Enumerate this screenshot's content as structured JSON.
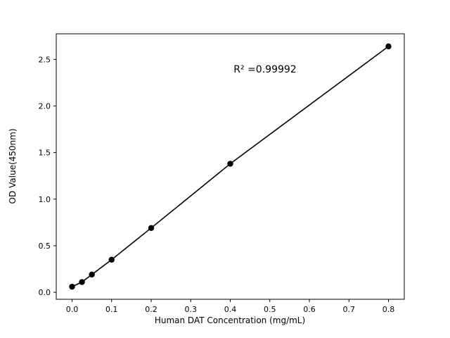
{
  "chart_data": {
    "type": "scatter",
    "title": "",
    "xlabel": "Human DAT Concentration (mg/mL)",
    "ylabel": "OD Value(450nm)",
    "x": [
      0,
      0.025,
      0.05,
      0.1,
      0.2,
      0.4,
      0.8
    ],
    "y": [
      0.06,
      0.11,
      0.19,
      0.35,
      0.69,
      1.38,
      2.64
    ],
    "fit_line": true,
    "xlim": [
      -0.04,
      0.84
    ],
    "ylim": [
      -0.075,
      2.775
    ],
    "xticks": [
      0,
      0.1,
      0.2,
      0.3,
      0.4,
      0.5,
      0.6,
      0.7,
      0.8
    ],
    "xtick_labels": [
      "0.0",
      "0.1",
      "0.2",
      "0.3",
      "0.4",
      "0.5",
      "0.6",
      "0.7",
      "0.8"
    ],
    "yticks": [
      0,
      0.5,
      1.0,
      1.5,
      2.0,
      2.5
    ],
    "ytick_labels": [
      "0.0",
      "0.5",
      "1.0",
      "1.5",
      "2.0",
      "2.5"
    ],
    "annotation": {
      "text": "R² =0.99992"
    },
    "grid": false,
    "legend_position": "none",
    "colors": {
      "marker": "#000000",
      "line": "#000000",
      "axis": "#000000",
      "background": "#ffffff"
    }
  }
}
